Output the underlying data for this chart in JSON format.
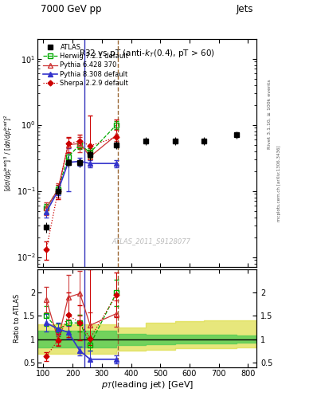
{
  "title_top": "7000 GeV pp",
  "title_right": "Jets",
  "plot_title": "R32 vs pT (anti-k_{T}(0.4), pT > 60)",
  "watermark": "ATLAS_2011_S9128077",
  "right_label1": "Rivet 3.1.10, ≥ 100k events",
  "right_label2": "mcplots.cern.ch [arXiv:1306.3436]",
  "xlim": [
    80,
    830
  ],
  "ylim_main": [
    0.007,
    20
  ],
  "ylim_ratio": [
    0.4,
    2.5
  ],
  "atlas_x": [
    110,
    150,
    185,
    225,
    260,
    350,
    450,
    550,
    650,
    760
  ],
  "atlas_y": [
    0.028,
    0.1,
    0.27,
    0.27,
    0.35,
    0.5,
    0.57,
    0.57,
    0.57,
    0.7
  ],
  "atlas_yerr_lo": [
    0.005,
    0.02,
    0.04,
    0.04,
    0.06,
    0.07,
    0.08,
    0.08,
    0.08,
    0.09
  ],
  "atlas_yerr_hi": [
    0.005,
    0.02,
    0.04,
    0.04,
    0.06,
    0.07,
    0.08,
    0.08,
    0.08,
    0.09
  ],
  "herwig_x": [
    110,
    150,
    185,
    225,
    260,
    350
  ],
  "herwig_y": [
    0.055,
    0.105,
    0.33,
    0.5,
    0.38,
    1.0
  ],
  "herwig_yerr": [
    0.008,
    0.015,
    0.04,
    0.07,
    0.06,
    0.14
  ],
  "herwig_color": "#00aa00",
  "pythia6_x": [
    110,
    150,
    185,
    225,
    260,
    350
  ],
  "pythia6_y": [
    0.055,
    0.105,
    0.5,
    0.52,
    0.33,
    0.7
  ],
  "pythia6_yerr": [
    0.012,
    0.025,
    0.13,
    0.13,
    0.09,
    0.13
  ],
  "pythia6_color": "#cc3333",
  "pythia8_x": [
    110,
    150,
    185,
    225,
    260,
    350
  ],
  "pythia8_y": [
    0.048,
    0.1,
    0.27,
    0.28,
    0.26,
    0.26
  ],
  "pythia8_yerr": [
    0.008,
    0.015,
    0.17,
    0.04,
    0.035,
    0.035
  ],
  "pythia8_color": "#3333cc",
  "sherpa_x": [
    110,
    150,
    185,
    225,
    260,
    350
  ],
  "sherpa_y": [
    0.013,
    0.1,
    0.52,
    0.57,
    0.48,
    0.65
  ],
  "sherpa_yerr_lo": [
    0.004,
    0.025,
    0.13,
    0.13,
    0.07,
    0.12
  ],
  "sherpa_yerr_hi": [
    0.004,
    0.025,
    0.13,
    0.13,
    0.9,
    0.55
  ],
  "sherpa_color": "#cc0000",
  "herwig_ratio_x": [
    110,
    150,
    185,
    225,
    260,
    350
  ],
  "herwig_ratio": [
    1.5,
    1.2,
    1.35,
    1.35,
    0.88,
    2.0
  ],
  "herwig_ratio_err": [
    0.22,
    0.13,
    0.18,
    0.18,
    0.13,
    0.28
  ],
  "pythia6_ratio_x": [
    110,
    150,
    185,
    225,
    260,
    350
  ],
  "pythia6_ratio": [
    1.85,
    1.0,
    1.9,
    1.98,
    1.3,
    1.55
  ],
  "pythia6_ratio_err": [
    0.28,
    0.13,
    0.48,
    0.48,
    0.28,
    0.28
  ],
  "pythia8_ratio_x": [
    110,
    150,
    185,
    225,
    260,
    350
  ],
  "pythia8_ratio": [
    1.35,
    1.22,
    1.15,
    0.75,
    0.57,
    0.57
  ],
  "pythia8_ratio_err": [
    0.19,
    0.13,
    0.13,
    0.09,
    0.19,
    0.09
  ],
  "sherpa_ratio_x": [
    110,
    150,
    185,
    225,
    260,
    350
  ],
  "sherpa_ratio": [
    0.63,
    0.98,
    1.52,
    1.35,
    1.02,
    1.95
  ],
  "sherpa_ratio_err_lo": [
    0.09,
    0.13,
    0.48,
    0.38,
    0.15,
    0.48
  ],
  "sherpa_ratio_err_hi": [
    0.09,
    0.13,
    0.48,
    0.38,
    1.48,
    0.48
  ],
  "vline1_x": 240,
  "vline2_x": 355,
  "green_band_x": [
    80,
    350,
    350,
    450,
    450,
    550,
    550,
    650,
    650,
    760,
    760,
    830
  ],
  "green_lo": [
    0.82,
    0.82,
    0.88,
    0.88,
    0.9,
    0.9,
    0.91,
    0.91,
    0.91,
    0.91,
    0.92,
    0.92
  ],
  "green_hi": [
    1.18,
    1.18,
    1.12,
    1.12,
    1.1,
    1.1,
    1.09,
    1.09,
    1.09,
    1.09,
    1.08,
    1.08
  ],
  "yellow_band_x": [
    80,
    350,
    350,
    450,
    450,
    550,
    550,
    650,
    650,
    760,
    760,
    830
  ],
  "yellow_lo": [
    0.68,
    0.68,
    0.75,
    0.75,
    0.78,
    0.78,
    0.8,
    0.8,
    0.8,
    0.8,
    0.82,
    0.82
  ],
  "yellow_hi": [
    1.32,
    1.32,
    1.25,
    1.25,
    1.35,
    1.35,
    1.38,
    1.38,
    1.4,
    1.4,
    1.4,
    1.4
  ],
  "bg_color": "#ffffff"
}
